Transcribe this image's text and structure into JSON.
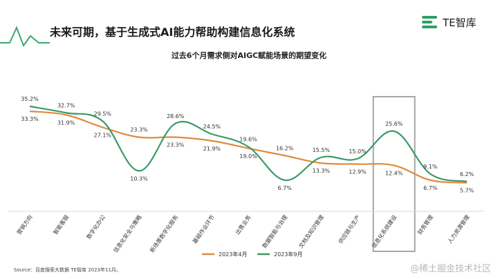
{
  "header": {
    "title": "未来可期，基于生成式AI能力帮助构建信息化系统",
    "logo_text": "TE智库"
  },
  "colors": {
    "series_april": "#e08a3c",
    "series_september": "#3a9a66",
    "highlight_box": "#a6a6a6",
    "accent_green": "#2f9e66"
  },
  "chart_data": {
    "type": "line",
    "title": "过去6个月需求侧对AIGC赋能场景的期望变化",
    "categories": [
      "营销方向",
      "智能客服",
      "数字化办公",
      "信息化安全与策略",
      "新场景数字化服务",
      "基础作业环节",
      "出售业务",
      "数据智能与治理",
      "文档及知识管理",
      "供应链与生产",
      "信息化系统建设",
      "财务管理",
      "人力资源管理"
    ],
    "series": [
      {
        "name": "2023年4月",
        "values": [
          33.3,
          31.9,
          27.1,
          23.3,
          23.3,
          21.9,
          19.0,
          16.2,
          13.3,
          12.9,
          12.4,
          6.7,
          5.7
        ]
      },
      {
        "name": "2023年9月",
        "values": [
          35.2,
          32.7,
          29.5,
          10.3,
          28.6,
          24.5,
          19.6,
          6.7,
          15.5,
          15.0,
          25.6,
          9.1,
          6.2
        ]
      }
    ],
    "value_labels": {
      "april": [
        "33.3%",
        "31.9%",
        "27.1%",
        "23.3%",
        "23.3%",
        "21.9%",
        "19.0%",
        "16.2%",
        "13.3%",
        "12.9%",
        "12.4%",
        "6.7%",
        "5.7%"
      ],
      "september": [
        "35.2%",
        "32.7%",
        "29.5%",
        "10.3%",
        "28.6%",
        "24.5%",
        "19.6%",
        "6.7%",
        "15.5%",
        "15.0%",
        "25.6%",
        "9.1%",
        "6.2%"
      ]
    },
    "highlighted_category": "信息化系统建设",
    "ylim": [
      0,
      40
    ],
    "legend_position": "bottom-center",
    "grid": false,
    "xlabel": "",
    "ylabel": ""
  },
  "footer": {
    "source": "Source：百度搜索大数据  TE智库 2023年11月。",
    "watermark": "@稀土掘金技术社区"
  }
}
